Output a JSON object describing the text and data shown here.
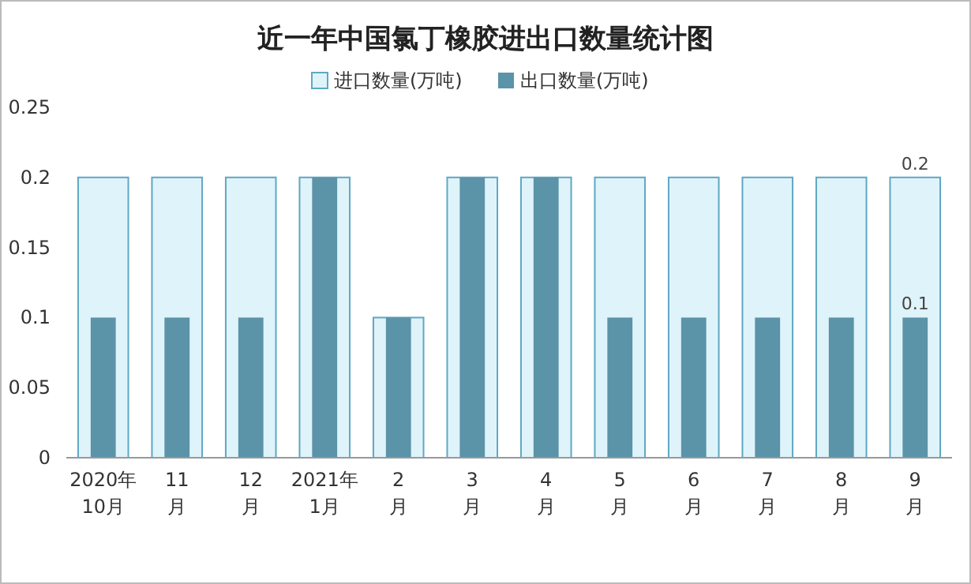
{
  "chart_data": {
    "type": "bar",
    "title": "近一年中国氯丁橡胶进出口数量统计图",
    "categories": [
      "2020年\n10月",
      "11\n月",
      "12\n月",
      "2021年\n1月",
      "2\n月",
      "3\n月",
      "4\n月",
      "5\n月",
      "6\n月",
      "7\n月",
      "8\n月",
      "9\n月"
    ],
    "series": [
      {
        "name": "进口数量(万吨)",
        "color": "#dff3fa",
        "values": [
          0.2,
          0.2,
          0.2,
          0.2,
          0.1,
          0.2,
          0.2,
          0.2,
          0.2,
          0.2,
          0.2,
          0.2
        ],
        "value_labels": [
          null,
          null,
          null,
          null,
          null,
          null,
          null,
          null,
          null,
          null,
          null,
          "0.2"
        ]
      },
      {
        "name": "出口数量(万吨)",
        "color": "#5b93a8",
        "values": [
          0.1,
          0.1,
          0.1,
          0.2,
          0.1,
          0.2,
          0.2,
          0.1,
          0.1,
          0.1,
          0.1,
          0.1
        ],
        "value_labels": [
          null,
          null,
          null,
          null,
          null,
          null,
          null,
          null,
          null,
          null,
          null,
          "0.1"
        ]
      }
    ],
    "ylim": [
      0,
      0.25
    ],
    "yticks": [
      0,
      0.05,
      0.1,
      0.15,
      0.2,
      0.25
    ],
    "grid": false,
    "legend": "top"
  }
}
